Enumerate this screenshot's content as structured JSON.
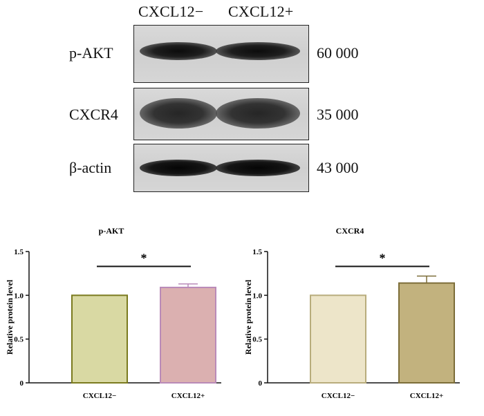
{
  "blot": {
    "lanes": [
      "CXCL12−",
      "CXCL12+"
    ],
    "rows": [
      {
        "label": "p-AKT",
        "mw": "60  000"
      },
      {
        "label": "CXCR4",
        "mw": "35  000"
      },
      {
        "label": "β-actin",
        "mw": "43  000"
      }
    ]
  },
  "chart_data": [
    {
      "type": "bar",
      "title": "p-AKT",
      "ylabel": "Relative protein level",
      "xlabel": "",
      "categories": [
        "CXCL12−",
        "CXCL12+"
      ],
      "values": [
        1.0,
        1.09
      ],
      "errors": [
        0,
        0.04
      ],
      "ylim": [
        0,
        1.5
      ],
      "yticks": [
        "0",
        "0.5",
        "1.0",
        "1.5"
      ],
      "significance": "*",
      "grid": false,
      "colors": {
        "fill": [
          "#d9d9a3",
          "#dbb0b0"
        ],
        "stroke": [
          "#7a7a1e",
          "#b98ab8"
        ]
      }
    },
    {
      "type": "bar",
      "title": "CXCR4",
      "ylabel": "Relative protein level",
      "xlabel": "",
      "categories": [
        "CXCL12−",
        "CXCL12+"
      ],
      "values": [
        1.0,
        1.14
      ],
      "errors": [
        0,
        0.08
      ],
      "ylim": [
        0,
        1.5
      ],
      "yticks": [
        "0",
        "0.5",
        "1.0",
        "1.5"
      ],
      "significance": "*",
      "grid": false,
      "colors": {
        "fill": [
          "#ede5c9",
          "#c2b27e"
        ],
        "stroke": [
          "#b8ac7c",
          "#7c6d38"
        ]
      }
    }
  ]
}
